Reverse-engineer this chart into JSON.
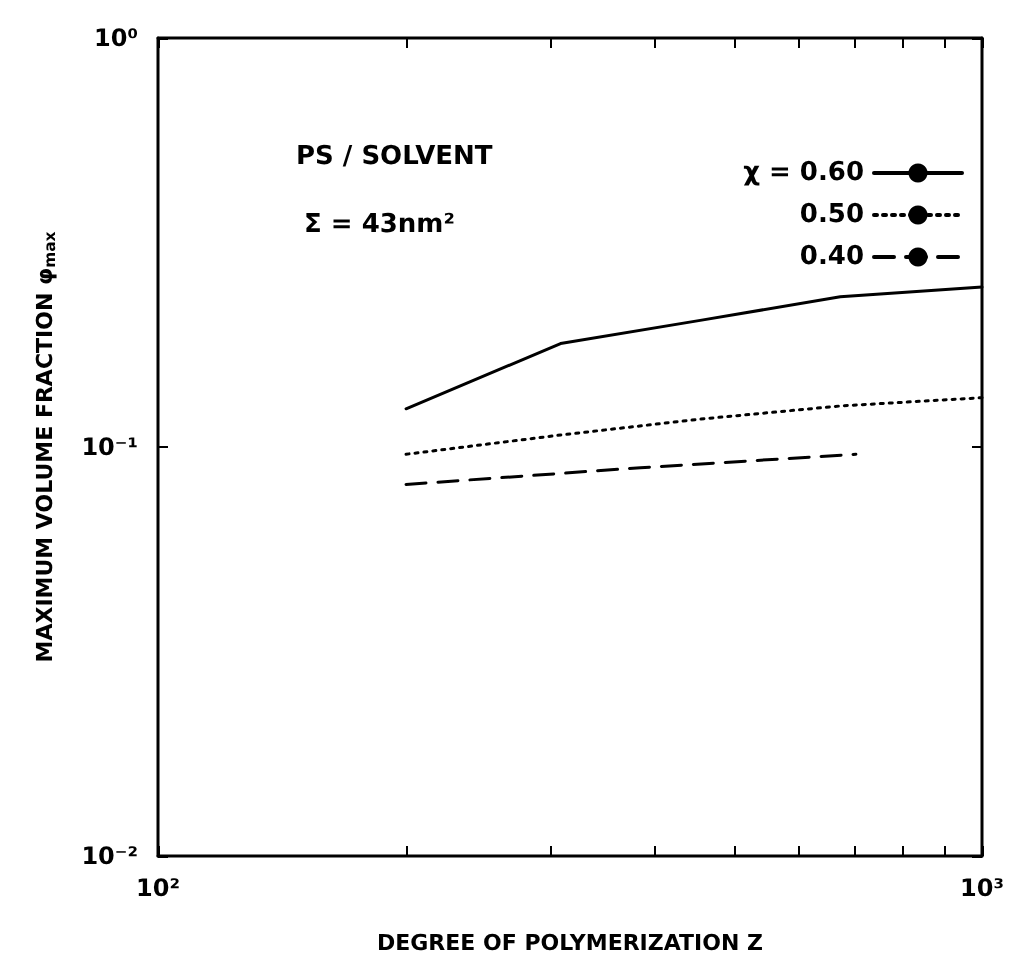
{
  "chart_data": {
    "type": "line",
    "xlabel": "DEGREE OF POLYMERIZATION Z",
    "ylabel": "MAXIMUM VOLUME FRACTION φ$_{max}$",
    "annotations": [
      "PS / SOLVENT",
      "Σ = 43nm²"
    ],
    "log": "xy",
    "xlim": [
      100,
      1000
    ],
    "ylim": [
      0.01,
      1
    ],
    "xticks": [
      {
        "value": 100,
        "label": "10²"
      },
      {
        "value": 200,
        "label": null
      },
      {
        "value": 300,
        "label": null
      },
      {
        "value": 400,
        "label": null
      },
      {
        "value": 500,
        "label": null
      },
      {
        "value": 600,
        "label": null
      },
      {
        "value": 700,
        "label": null
      },
      {
        "value": 800,
        "label": null
      },
      {
        "value": 900,
        "label": null
      },
      {
        "value": 1000,
        "label": "10³"
      }
    ],
    "yticks": [
      {
        "value": 0.01,
        "label": "10⁻²"
      },
      {
        "value": 0.1,
        "label": "10⁻¹"
      },
      {
        "value": 1,
        "label": "10⁰"
      }
    ],
    "grid": false,
    "marker": "none",
    "legend": "top right",
    "series": [
      {
        "name": "χ = 0.60",
        "color": "#000000",
        "line_style": "solid",
        "x": [
          200,
          308,
          455,
          673,
          1000
        ],
        "values": [
          0.124,
          0.179,
          0.204,
          0.233,
          0.246
        ]
      },
      {
        "name": "0.50",
        "color": "#000000",
        "line_style": "dotted",
        "x": [
          200,
          308,
          455,
          673,
          1000
        ],
        "values": [
          0.096,
          0.107,
          0.117,
          0.126,
          0.132
        ]
      },
      {
        "name": "0.40",
        "color": "#000000",
        "line_style": "dashed",
        "x": [
          200,
          385,
          703
        ],
        "values": [
          0.081,
          0.089,
          0.096
        ]
      }
    ]
  }
}
